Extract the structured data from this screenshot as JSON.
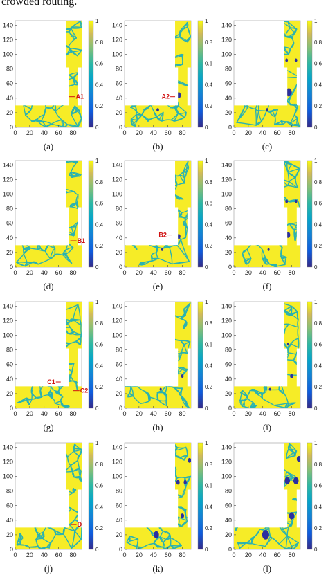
{
  "caption_fragment": "crowded routing.",
  "colors": {
    "high": "#f6ec27",
    "mid": "#2bb2b0",
    "low": "#2b2fa0",
    "tick_text": "#222222",
    "annotation": "#d01010"
  },
  "chart_data": {
    "type": "heatmap",
    "x_ticks": [
      "0",
      "20",
      "40",
      "60",
      "80"
    ],
    "y_ticks": [
      "0",
      "20",
      "40",
      "60",
      "80",
      "100",
      "120",
      "140"
    ],
    "x_range": [
      0,
      92
    ],
    "y_range": [
      0,
      146
    ],
    "colorbar_ticks": [
      "0",
      "0.2",
      "0.4",
      "0.6",
      "0.8",
      "1"
    ],
    "colorbar_range": [
      0,
      1
    ],
    "panels": [
      {
        "id": "a",
        "label": "(a)",
        "annotations": [
          {
            "text": "A1",
            "x": 80,
            "y": 42
          }
        ],
        "damage": []
      },
      {
        "id": "b",
        "label": "(b)",
        "annotations": [
          {
            "text": "A2",
            "x": 70,
            "y": 42
          }
        ],
        "damage": [
          {
            "x": 46,
            "y": 24,
            "r": 1.5
          },
          {
            "x": 75,
            "y": 44,
            "r": 2.5
          }
        ]
      },
      {
        "id": "c",
        "label": "(c)",
        "annotations": [],
        "damage": [
          {
            "x": 46,
            "y": 24,
            "r": 1.5
          },
          {
            "x": 76,
            "y": 48,
            "r": 3.5
          },
          {
            "x": 73,
            "y": 92,
            "r": 1.5
          },
          {
            "x": 86,
            "y": 92,
            "r": 1.5
          }
        ]
      },
      {
        "id": "d",
        "label": "(d)",
        "annotations": [
          {
            "text": "B1",
            "x": 82,
            "y": 36
          }
        ],
        "damage": []
      },
      {
        "id": "e",
        "label": "(e)",
        "annotations": [
          {
            "text": "B2",
            "x": 66,
            "y": 44
          }
        ],
        "damage": [
          {
            "x": 52,
            "y": 24,
            "r": 1.2
          },
          {
            "x": 75,
            "y": 42,
            "r": 2.0
          }
        ]
      },
      {
        "id": "f",
        "label": "(f)",
        "annotations": [],
        "damage": [
          {
            "x": 48,
            "y": 24,
            "r": 1.2
          },
          {
            "x": 75,
            "y": 44,
            "r": 2.5
          },
          {
            "x": 73,
            "y": 90,
            "r": 1.5
          },
          {
            "x": 86,
            "y": 90,
            "r": 1.5
          }
        ]
      },
      {
        "id": "g",
        "label": "(g)",
        "annotations": [
          {
            "text": "C1",
            "x": 63,
            "y": 36
          },
          {
            "text": "C2",
            "x": 86,
            "y": 24
          }
        ],
        "damage": []
      },
      {
        "id": "h",
        "label": "(h)",
        "annotations": [],
        "damage": [
          {
            "x": 50,
            "y": 26,
            "r": 1.2
          },
          {
            "x": 80,
            "y": 44,
            "r": 1.5
          }
        ]
      },
      {
        "id": "i",
        "label": "(i)",
        "annotations": [],
        "damage": [
          {
            "x": 50,
            "y": 26,
            "r": 1.2
          },
          {
            "x": 80,
            "y": 44,
            "r": 1.8
          },
          {
            "x": 75,
            "y": 88,
            "r": 1.2
          }
        ]
      },
      {
        "id": "j",
        "label": "(j)",
        "annotations": [
          {
            "text": "D",
            "x": 82,
            "y": 34
          }
        ],
        "damage": []
      },
      {
        "id": "k",
        "label": "(k)",
        "annotations": [],
        "damage": [
          {
            "x": 44,
            "y": 20,
            "r": 3.0
          },
          {
            "x": 80,
            "y": 46,
            "r": 2.0
          },
          {
            "x": 74,
            "y": 92,
            "r": 2.0
          },
          {
            "x": 84,
            "y": 92,
            "r": 1.8
          },
          {
            "x": 90,
            "y": 122,
            "r": 2.0
          }
        ]
      },
      {
        "id": "l",
        "label": "(l)",
        "annotations": [],
        "damage": [
          {
            "x": 44,
            "y": 20,
            "r": 4.0
          },
          {
            "x": 80,
            "y": 46,
            "r": 3.0
          },
          {
            "x": 74,
            "y": 94,
            "r": 3.0
          },
          {
            "x": 86,
            "y": 94,
            "r": 3.0
          },
          {
            "x": 90,
            "y": 124,
            "r": 2.5
          }
        ]
      }
    ]
  }
}
